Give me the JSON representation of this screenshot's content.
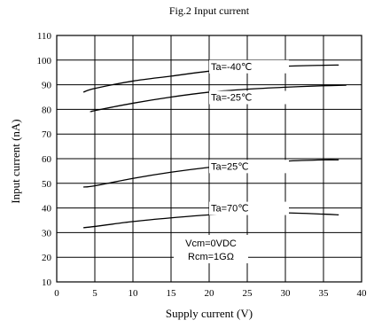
{
  "chart_data": {
    "type": "line",
    "title": "Fig.2 Input current",
    "xlabel": "Supply current (V)",
    "ylabel": "Input current (nA)",
    "xlim": [
      0,
      40
    ],
    "ylim": [
      10,
      110
    ],
    "xticks": [
      0,
      5,
      10,
      15,
      20,
      25,
      30,
      35,
      40
    ],
    "yticks": [
      10,
      20,
      30,
      40,
      50,
      60,
      70,
      80,
      90,
      100,
      110
    ],
    "grid": true,
    "series": [
      {
        "name": "Ta=-40℃",
        "color": "#000000",
        "x": [
          3.5,
          5,
          10,
          15,
          20,
          25,
          30,
          35,
          37
        ],
        "y": [
          87,
          88.5,
          91.5,
          93.5,
          95.5,
          96.8,
          97.5,
          97.9,
          98
        ]
      },
      {
        "name": "Ta=-25℃",
        "color": "#000000",
        "x": [
          4.5,
          5,
          10,
          15,
          20,
          25,
          30,
          35,
          38
        ],
        "y": [
          79,
          79.5,
          82.5,
          85,
          87,
          88.2,
          89,
          89.6,
          89.8
        ]
      },
      {
        "name": "Ta=25℃",
        "color": "#000000",
        "x": [
          3.5,
          5,
          10,
          15,
          20,
          25,
          30,
          35,
          37
        ],
        "y": [
          48.5,
          49,
          52,
          54.5,
          56.5,
          58,
          59,
          59.5,
          59.5
        ]
      },
      {
        "name": "Ta=70℃",
        "color": "#000000",
        "x": [
          3.5,
          5,
          10,
          15,
          20,
          25,
          30,
          35,
          37
        ],
        "y": [
          32,
          32.5,
          34.5,
          36,
          37.2,
          37.8,
          38,
          37.5,
          37.2
        ]
      }
    ],
    "annotations": [
      "Vcm=0VDC",
      "Rcm=1GΩ"
    ]
  }
}
